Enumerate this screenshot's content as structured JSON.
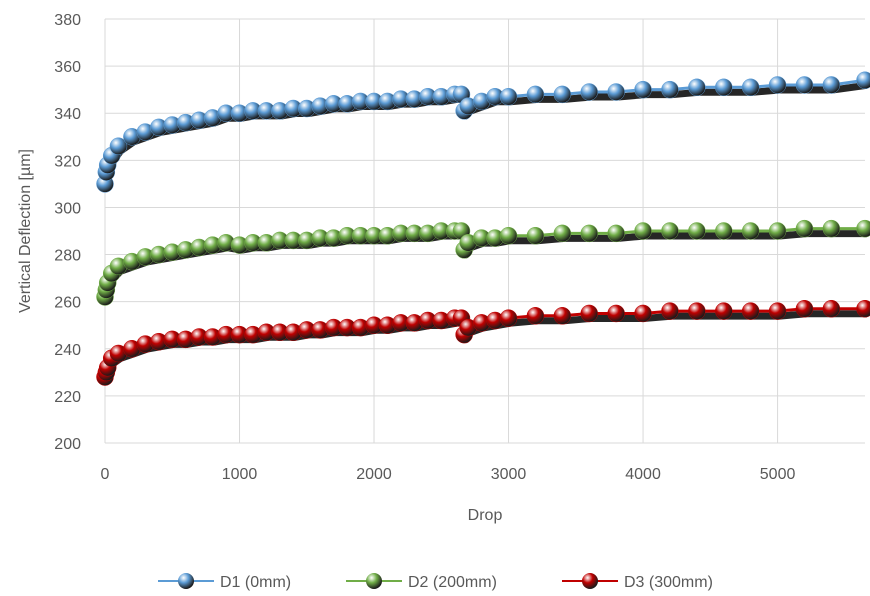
{
  "chart_data": {
    "type": "scatter",
    "xlabel": "Drop",
    "ylabel": "Vertical Deflection [µm]",
    "xlim": [
      0,
      5650
    ],
    "ylim": [
      200,
      380
    ],
    "xticks": [
      0,
      1000,
      2000,
      3000,
      4000,
      5000
    ],
    "yticks": [
      200,
      220,
      240,
      260,
      280,
      300,
      320,
      340,
      360,
      380
    ],
    "grid": true,
    "legend_position": "bottom",
    "series": [
      {
        "name": "D1 (0mm)",
        "color": "#5b9bd5",
        "marker": "sphere",
        "connect": true,
        "x": [
          0,
          10,
          20,
          50,
          100,
          200,
          300,
          400,
          500,
          600,
          700,
          800,
          900,
          1000,
          1100,
          1200,
          1300,
          1400,
          1500,
          1600,
          1700,
          1800,
          1900,
          2000,
          2100,
          2200,
          2300,
          2400,
          2500,
          2600,
          2650,
          2670,
          2700,
          2800,
          2900,
          3000,
          3200,
          3400,
          3600,
          3800,
          4000,
          4200,
          4400,
          4600,
          4800,
          5000,
          5200,
          5400,
          5650
        ],
        "y": [
          310,
          315,
          318,
          322,
          326,
          330,
          332,
          334,
          335,
          336,
          337,
          338,
          340,
          340,
          341,
          341,
          341,
          342,
          342,
          343,
          344,
          344,
          345,
          345,
          345,
          346,
          346,
          347,
          347,
          348,
          348,
          341,
          343,
          345,
          347,
          347,
          348,
          348,
          349,
          349,
          350,
          350,
          351,
          351,
          351,
          352,
          352,
          352,
          354
        ]
      },
      {
        "name": "D2 (200mm)",
        "color": "#70ad47",
        "marker": "sphere",
        "connect": true,
        "x": [
          0,
          10,
          20,
          50,
          100,
          200,
          300,
          400,
          500,
          600,
          700,
          800,
          900,
          1000,
          1100,
          1200,
          1300,
          1400,
          1500,
          1600,
          1700,
          1800,
          1900,
          2000,
          2100,
          2200,
          2300,
          2400,
          2500,
          2600,
          2650,
          2670,
          2700,
          2800,
          2900,
          3000,
          3200,
          3400,
          3600,
          3800,
          4000,
          4200,
          4400,
          4600,
          4800,
          5000,
          5200,
          5400,
          5650
        ],
        "y": [
          262,
          265,
          268,
          272,
          275,
          277,
          279,
          280,
          281,
          282,
          283,
          284,
          285,
          284,
          285,
          285,
          286,
          286,
          286,
          287,
          287,
          288,
          288,
          288,
          288,
          289,
          289,
          289,
          290,
          290,
          290,
          282,
          285,
          287,
          287,
          288,
          288,
          289,
          289,
          289,
          290,
          290,
          290,
          290,
          290,
          290,
          291,
          291,
          291
        ]
      },
      {
        "name": "D3 (300mm)",
        "color": "#c00000",
        "marker": "sphere",
        "connect": true,
        "x": [
          0,
          10,
          20,
          50,
          100,
          200,
          300,
          400,
          500,
          600,
          700,
          800,
          900,
          1000,
          1100,
          1200,
          1300,
          1400,
          1500,
          1600,
          1700,
          1800,
          1900,
          2000,
          2100,
          2200,
          2300,
          2400,
          2500,
          2600,
          2650,
          2670,
          2700,
          2800,
          2900,
          3000,
          3200,
          3400,
          3600,
          3800,
          4000,
          4200,
          4400,
          4600,
          4800,
          5000,
          5200,
          5400,
          5650
        ],
        "y": [
          228,
          230,
          232,
          236,
          238,
          240,
          242,
          243,
          244,
          244,
          245,
          245,
          246,
          246,
          246,
          247,
          247,
          247,
          248,
          248,
          249,
          249,
          249,
          250,
          250,
          251,
          251,
          252,
          252,
          253,
          253,
          246,
          249,
          251,
          252,
          253,
          254,
          254,
          255,
          255,
          255,
          256,
          256,
          256,
          256,
          256,
          257,
          257,
          257
        ]
      }
    ]
  }
}
